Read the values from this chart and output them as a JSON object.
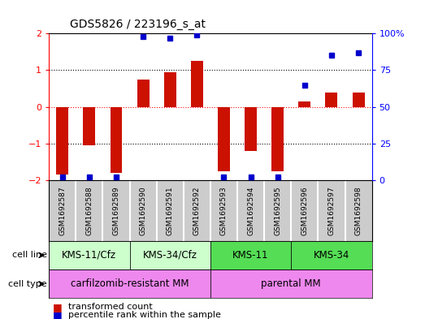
{
  "title": "GDS5826 / 223196_s_at",
  "samples": [
    "GSM1692587",
    "GSM1692588",
    "GSM1692589",
    "GSM1692590",
    "GSM1692591",
    "GSM1692592",
    "GSM1692593",
    "GSM1692594",
    "GSM1692595",
    "GSM1692596",
    "GSM1692597",
    "GSM1692598"
  ],
  "transformed_count": [
    -1.85,
    -1.05,
    -1.8,
    0.75,
    0.95,
    1.25,
    -1.75,
    -1.2,
    -1.75,
    0.15,
    0.4,
    0.4
  ],
  "percentile_rank": [
    2,
    2,
    2,
    98,
    97,
    99,
    2,
    2,
    2,
    65,
    85,
    87
  ],
  "cell_line_groups": [
    {
      "label": "KMS-11/Cfz",
      "start": 0,
      "end": 2,
      "color": "#ccffcc"
    },
    {
      "label": "KMS-34/Cfz",
      "start": 3,
      "end": 5,
      "color": "#ccffcc"
    },
    {
      "label": "KMS-11",
      "start": 6,
      "end": 8,
      "color": "#55dd55"
    },
    {
      "label": "KMS-34",
      "start": 9,
      "end": 11,
      "color": "#55dd55"
    }
  ],
  "cell_type_groups": [
    {
      "label": "carfilzomib-resistant MM",
      "start": 0,
      "end": 5,
      "color": "#ee88ee"
    },
    {
      "label": "parental MM",
      "start": 6,
      "end": 11,
      "color": "#ee88ee"
    }
  ],
  "bar_color": "#cc1100",
  "dot_color": "#0000cc",
  "ylim_left": [
    -2,
    2
  ],
  "ylim_right": [
    0,
    100
  ],
  "yticks_left": [
    -2,
    -1,
    0,
    1,
    2
  ],
  "yticks_right": [
    0,
    25,
    50,
    75,
    100
  ],
  "ytick_labels_right": [
    "0",
    "25",
    "50",
    "75",
    "100%"
  ],
  "hline_dotted": [
    -1,
    1
  ],
  "hline_red_dashed": [
    0
  ],
  "sample_label_bg": "#cccccc",
  "background_color": "#ffffff"
}
